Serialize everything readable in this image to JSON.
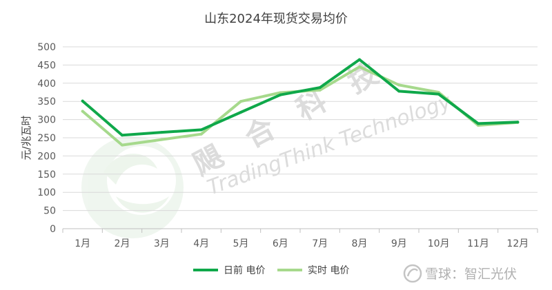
{
  "chart_data": {
    "type": "line",
    "title": "山东2024年现货交易均价",
    "xlabel": "",
    "ylabel": "元/兆瓦时",
    "categories": [
      "1月",
      "2月",
      "3月",
      "4月",
      "5月",
      "6月",
      "7月",
      "8月",
      "9月",
      "10月",
      "11月",
      "12月"
    ],
    "ylim": [
      0,
      500
    ],
    "yticks": [
      0,
      50,
      100,
      150,
      200,
      250,
      300,
      350,
      400,
      450,
      500
    ],
    "grid": true,
    "legend_position": "bottom",
    "series": [
      {
        "name": "日前 电价",
        "color": "#0fa84a",
        "values": [
          351,
          257,
          265,
          272,
          320,
          368,
          388,
          465,
          378,
          370,
          289,
          293
        ]
      },
      {
        "name": "实时 电价",
        "color": "#a6d98c",
        "values": [
          323,
          230,
          245,
          260,
          350,
          374,
          381,
          445,
          395,
          375,
          284,
          292
        ]
      }
    ]
  },
  "watermark": {
    "cn_text": "飓 合 科 技",
    "en_text": "TradingThink Technology",
    "logo_icon": "leaf-swirl-logo",
    "color": "#dcdcdc"
  },
  "footer": {
    "icon": "snowball-icon",
    "text": "雪球：智汇光伏"
  }
}
